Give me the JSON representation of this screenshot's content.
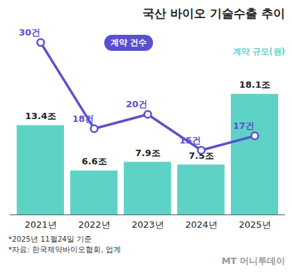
{
  "chart_data": {
    "type": "bar",
    "title": "국산 바이오 기술수출 추이",
    "categories": [
      "2021년",
      "2022년",
      "2023년",
      "2024년",
      "2025년"
    ],
    "series": [
      {
        "name": "계약 규모(원)",
        "type": "bar",
        "color": "#5ed3c5",
        "values": [
          13.4,
          6.6,
          7.9,
          7.5,
          18.1
        ],
        "value_labels": [
          "13.4조",
          "6.6조",
          "7.9조",
          "7.5조",
          "18.1조"
        ]
      },
      {
        "name": "계약 건수",
        "type": "line",
        "axis": "y2",
        "color": "#5a4fcf",
        "marker": "circle",
        "values": [
          30,
          18,
          20,
          15,
          17
        ],
        "value_labels": [
          "30건",
          "18건",
          "20건",
          "15건",
          "17건"
        ]
      }
    ],
    "ylim": [
      0,
      28
    ],
    "y2lim": [
      6,
      32
    ],
    "grid": false,
    "data_labels": true,
    "tick_labels": "x",
    "notes": [
      "*2025년 11월24일 기준",
      "*자료: 한국제약바이오협회, 업계"
    ],
    "logo": "MT 머니투데이"
  }
}
